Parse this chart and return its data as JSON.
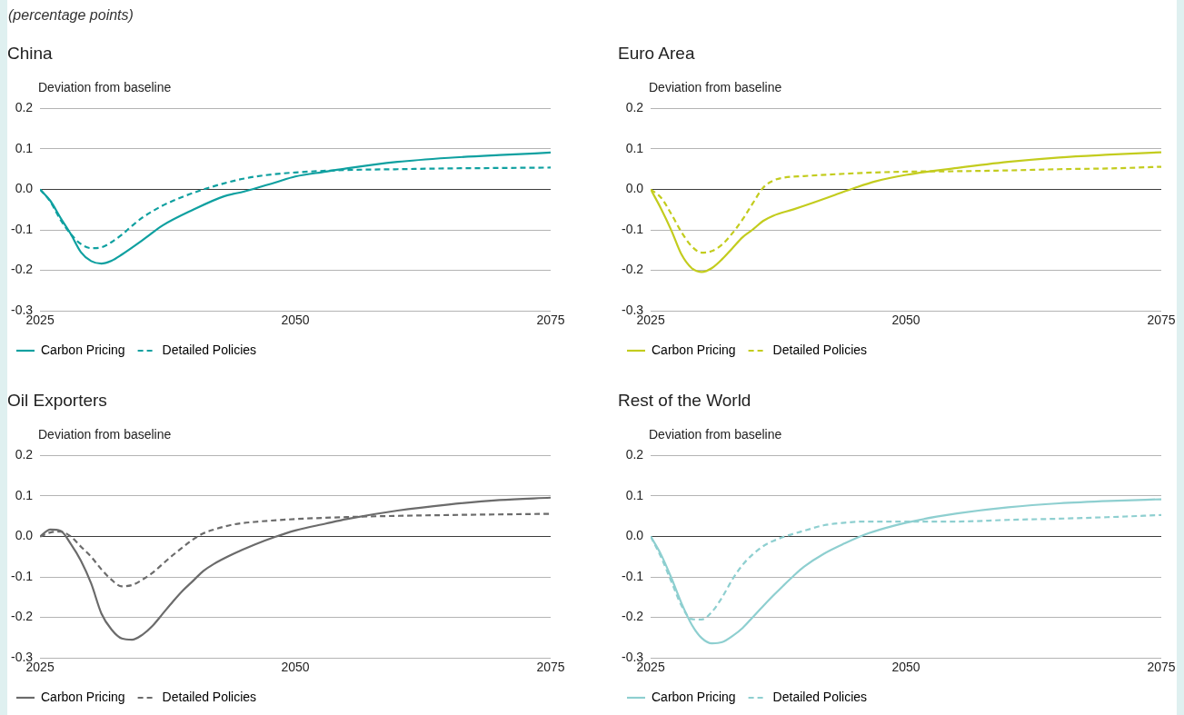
{
  "chart_data": [
    {
      "type": "line",
      "title": "China",
      "subtitle": "(percentage points)",
      "ylabel": "Deviation from baseline",
      "xlim": [
        2025,
        2075
      ],
      "xticks": [
        2025,
        2050,
        2075
      ],
      "ylim": [
        -0.3,
        0.2
      ],
      "yticks": [
        {
          "value": -0.3,
          "label": "-0.3"
        },
        {
          "value": -0.2,
          "label": "-0.2"
        },
        {
          "value": -0.1,
          "label": "-0.1"
        },
        {
          "value": 0,
          "label": "0.0"
        },
        {
          "value": 0.1,
          "label": "0.1"
        },
        {
          "value": 0.2,
          "label": "0.2"
        }
      ],
      "grid": "y",
      "legend": "bottom left",
      "marker": "none",
      "ref_lines": [
        {
          "axis": "y",
          "value": 0,
          "color": "#3c3c3c"
        }
      ],
      "series": [
        {
          "name": "Carbon Pricing",
          "color": "#0fa0a0",
          "line_style": "solid",
          "x": [
            2025,
            2026,
            2027,
            2028,
            2029,
            2030,
            2031,
            2032,
            2033,
            2035,
            2037,
            2040,
            2043,
            2045,
            2048,
            2050,
            2053,
            2055,
            2060,
            2065,
            2070,
            2075
          ],
          "values": [
            0,
            -0.028,
            -0.07,
            -0.11,
            -0.155,
            -0.177,
            -0.183,
            -0.176,
            -0.161,
            -0.126,
            -0.089,
            -0.05,
            -0.017,
            -0.005,
            0.017,
            0.032,
            0.044,
            0.052,
            0.068,
            0.078,
            0.085,
            0.091
          ]
        },
        {
          "name": "Detailed Policies",
          "color": "#0fa0a0",
          "line_style": "dashed",
          "x": [
            2025,
            2026,
            2027,
            2028,
            2029,
            2030,
            2031,
            2032,
            2033,
            2034,
            2035,
            2037,
            2039,
            2041,
            2043,
            2045,
            2047,
            2050,
            2055,
            2060,
            2065,
            2070,
            2075
          ],
          "values": [
            0,
            -0.03,
            -0.075,
            -0.11,
            -0.135,
            -0.145,
            -0.143,
            -0.13,
            -0.112,
            -0.09,
            -0.07,
            -0.04,
            -0.018,
            0,
            0.015,
            0.027,
            0.035,
            0.042,
            0.048,
            0.05,
            0.052,
            0.053,
            0.054
          ]
        }
      ]
    },
    {
      "type": "line",
      "title": "Euro Area",
      "ylabel": "Deviation from baseline",
      "xlim": [
        2025,
        2075
      ],
      "xticks": [
        2025,
        2050,
        2075
      ],
      "ylim": [
        -0.3,
        0.2
      ],
      "yticks": [
        {
          "value": -0.3,
          "label": "-0.3"
        },
        {
          "value": -0.2,
          "label": "-0.2"
        },
        {
          "value": -0.1,
          "label": "-0.1"
        },
        {
          "value": 0,
          "label": "0.0"
        },
        {
          "value": 0.1,
          "label": "0.1"
        },
        {
          "value": 0.2,
          "label": "0.2"
        }
      ],
      "grid": "y",
      "legend": "bottom left",
      "marker": "none",
      "ref_lines": [
        {
          "axis": "y",
          "value": 0,
          "color": "#3c3c3c"
        }
      ],
      "series": [
        {
          "name": "Carbon Pricing",
          "color": "#c3cc1e",
          "line_style": "solid",
          "x": [
            2025,
            2026,
            2027,
            2028,
            2029,
            2030,
            2031,
            2032,
            2033,
            2034,
            2035,
            2036,
            2037,
            2039,
            2041,
            2043,
            2045,
            2047,
            2050,
            2055,
            2060,
            2065,
            2070,
            2075
          ],
          "values": [
            0,
            -0.047,
            -0.1,
            -0.16,
            -0.194,
            -0.204,
            -0.194,
            -0.172,
            -0.145,
            -0.118,
            -0.099,
            -0.078,
            -0.065,
            -0.049,
            -0.032,
            -0.014,
            0.004,
            0.02,
            0.036,
            0.053,
            0.068,
            0.079,
            0.086,
            0.092
          ]
        },
        {
          "name": "Detailed Policies",
          "color": "#c3cc1e",
          "line_style": "dashed",
          "x": [
            2025,
            2026,
            2027,
            2028,
            2029,
            2030,
            2031,
            2032,
            2033,
            2034,
            2035,
            2036,
            2037,
            2038,
            2040,
            2045,
            2050,
            2055,
            2060,
            2065,
            2070,
            2075
          ],
          "values": [
            0,
            -0.02,
            -0.06,
            -0.105,
            -0.14,
            -0.156,
            -0.152,
            -0.136,
            -0.108,
            -0.074,
            -0.034,
            0.004,
            0.022,
            0.029,
            0.033,
            0.04,
            0.044,
            0.045,
            0.047,
            0.05,
            0.052,
            0.056
          ]
        }
      ]
    },
    {
      "type": "line",
      "title": "Oil Exporters",
      "ylabel": "Deviation from baseline",
      "xlim": [
        2025,
        2075
      ],
      "xticks": [
        2025,
        2050,
        2075
      ],
      "ylim": [
        -0.3,
        0.2
      ],
      "yticks": [
        {
          "value": -0.3,
          "label": "-0.3"
        },
        {
          "value": -0.2,
          "label": "-0.2"
        },
        {
          "value": -0.1,
          "label": "-0.1"
        },
        {
          "value": 0,
          "label": "0.0"
        },
        {
          "value": 0.1,
          "label": "0.1"
        },
        {
          "value": 0.2,
          "label": "0.2"
        }
      ],
      "grid": "y",
      "legend": "bottom left",
      "marker": "none",
      "ref_lines": [
        {
          "axis": "y",
          "value": 0,
          "color": "#3c3c3c"
        }
      ],
      "series": [
        {
          "name": "Carbon Pricing",
          "color": "#6b6b6b",
          "line_style": "solid",
          "x": [
            2025,
            2026,
            2027,
            2028,
            2029,
            2030,
            2031,
            2032,
            2033,
            2034,
            2035,
            2036,
            2037,
            2038,
            2039,
            2040,
            2041,
            2042,
            2044,
            2046,
            2048,
            2050,
            2053,
            2055,
            2060,
            2065,
            2070,
            2075
          ],
          "values": [
            0,
            0.017,
            0.014,
            -0.018,
            -0.06,
            -0.116,
            -0.19,
            -0.23,
            -0.252,
            -0.255,
            -0.243,
            -0.221,
            -0.191,
            -0.161,
            -0.133,
            -0.109,
            -0.085,
            -0.068,
            -0.042,
            -0.02,
            -0.001,
            0.015,
            0.032,
            0.043,
            0.064,
            0.079,
            0.09,
            0.096
          ]
        },
        {
          "name": "Detailed Policies",
          "color": "#6b6b6b",
          "line_style": "dashed",
          "x": [
            2025,
            2026,
            2027,
            2028,
            2029,
            2030,
            2031,
            2032,
            2033,
            2034,
            2035,
            2036,
            2037,
            2038,
            2039,
            2040,
            2041,
            2042,
            2044,
            2046,
            2050,
            2055,
            2060,
            2065,
            2075
          ],
          "values": [
            0,
            0.01,
            0.012,
            0,
            -0.025,
            -0.05,
            -0.081,
            -0.107,
            -0.123,
            -0.12,
            -0.107,
            -0.09,
            -0.068,
            -0.046,
            -0.026,
            -0.007,
            0.008,
            0.017,
            0.03,
            0.036,
            0.043,
            0.048,
            0.051,
            0.053,
            0.056
          ]
        }
      ]
    },
    {
      "type": "line",
      "title": "Rest of the World",
      "ylabel": "Deviation from baseline",
      "xlim": [
        2025,
        2075
      ],
      "xticks": [
        2025,
        2050,
        2075
      ],
      "ylim": [
        -0.3,
        0.2
      ],
      "yticks": [
        {
          "value": -0.3,
          "label": "-0.3"
        },
        {
          "value": -0.2,
          "label": "-0.2"
        },
        {
          "value": -0.1,
          "label": "-0.1"
        },
        {
          "value": 0,
          "label": "0.0"
        },
        {
          "value": 0.1,
          "label": "0.1"
        },
        {
          "value": 0.2,
          "label": "0.2"
        }
      ],
      "grid": "y",
      "legend": "bottom left",
      "marker": "none",
      "ref_lines": [
        {
          "axis": "y",
          "value": 0,
          "color": "#3c3c3c"
        }
      ],
      "series": [
        {
          "name": "Carbon Pricing",
          "color": "#8ecfd0",
          "line_style": "solid",
          "x": [
            2025,
            2026,
            2027,
            2028,
            2029,
            2030,
            2031,
            2032,
            2033,
            2034,
            2035,
            2036,
            2037,
            2038,
            2039,
            2040,
            2042,
            2044,
            2046,
            2048,
            2050,
            2053,
            2055,
            2060,
            2065,
            2070,
            2075
          ],
          "values": [
            0,
            -0.044,
            -0.101,
            -0.164,
            -0.217,
            -0.251,
            -0.264,
            -0.261,
            -0.246,
            -0.226,
            -0.199,
            -0.172,
            -0.146,
            -0.121,
            -0.097,
            -0.075,
            -0.042,
            -0.017,
            0.005,
            0.021,
            0.034,
            0.049,
            0.057,
            0.072,
            0.082,
            0.088,
            0.092
          ]
        },
        {
          "name": "Detailed Policies",
          "color": "#8ecfd0",
          "line_style": "dashed",
          "x": [
            2025,
            2026,
            2027,
            2028,
            2029,
            2030,
            2031,
            2032,
            2033,
            2034,
            2035,
            2036,
            2037,
            2038,
            2040,
            2042,
            2044,
            2046,
            2050,
            2055,
            2060,
            2065,
            2070,
            2075
          ],
          "values": [
            0,
            -0.05,
            -0.11,
            -0.17,
            -0.204,
            -0.205,
            -0.186,
            -0.15,
            -0.106,
            -0.07,
            -0.044,
            -0.024,
            -0.011,
            -0.001,
            0.014,
            0.028,
            0.034,
            0.037,
            0.037,
            0.037,
            0.041,
            0.044,
            0.048,
            0.053
          ]
        }
      ]
    }
  ]
}
